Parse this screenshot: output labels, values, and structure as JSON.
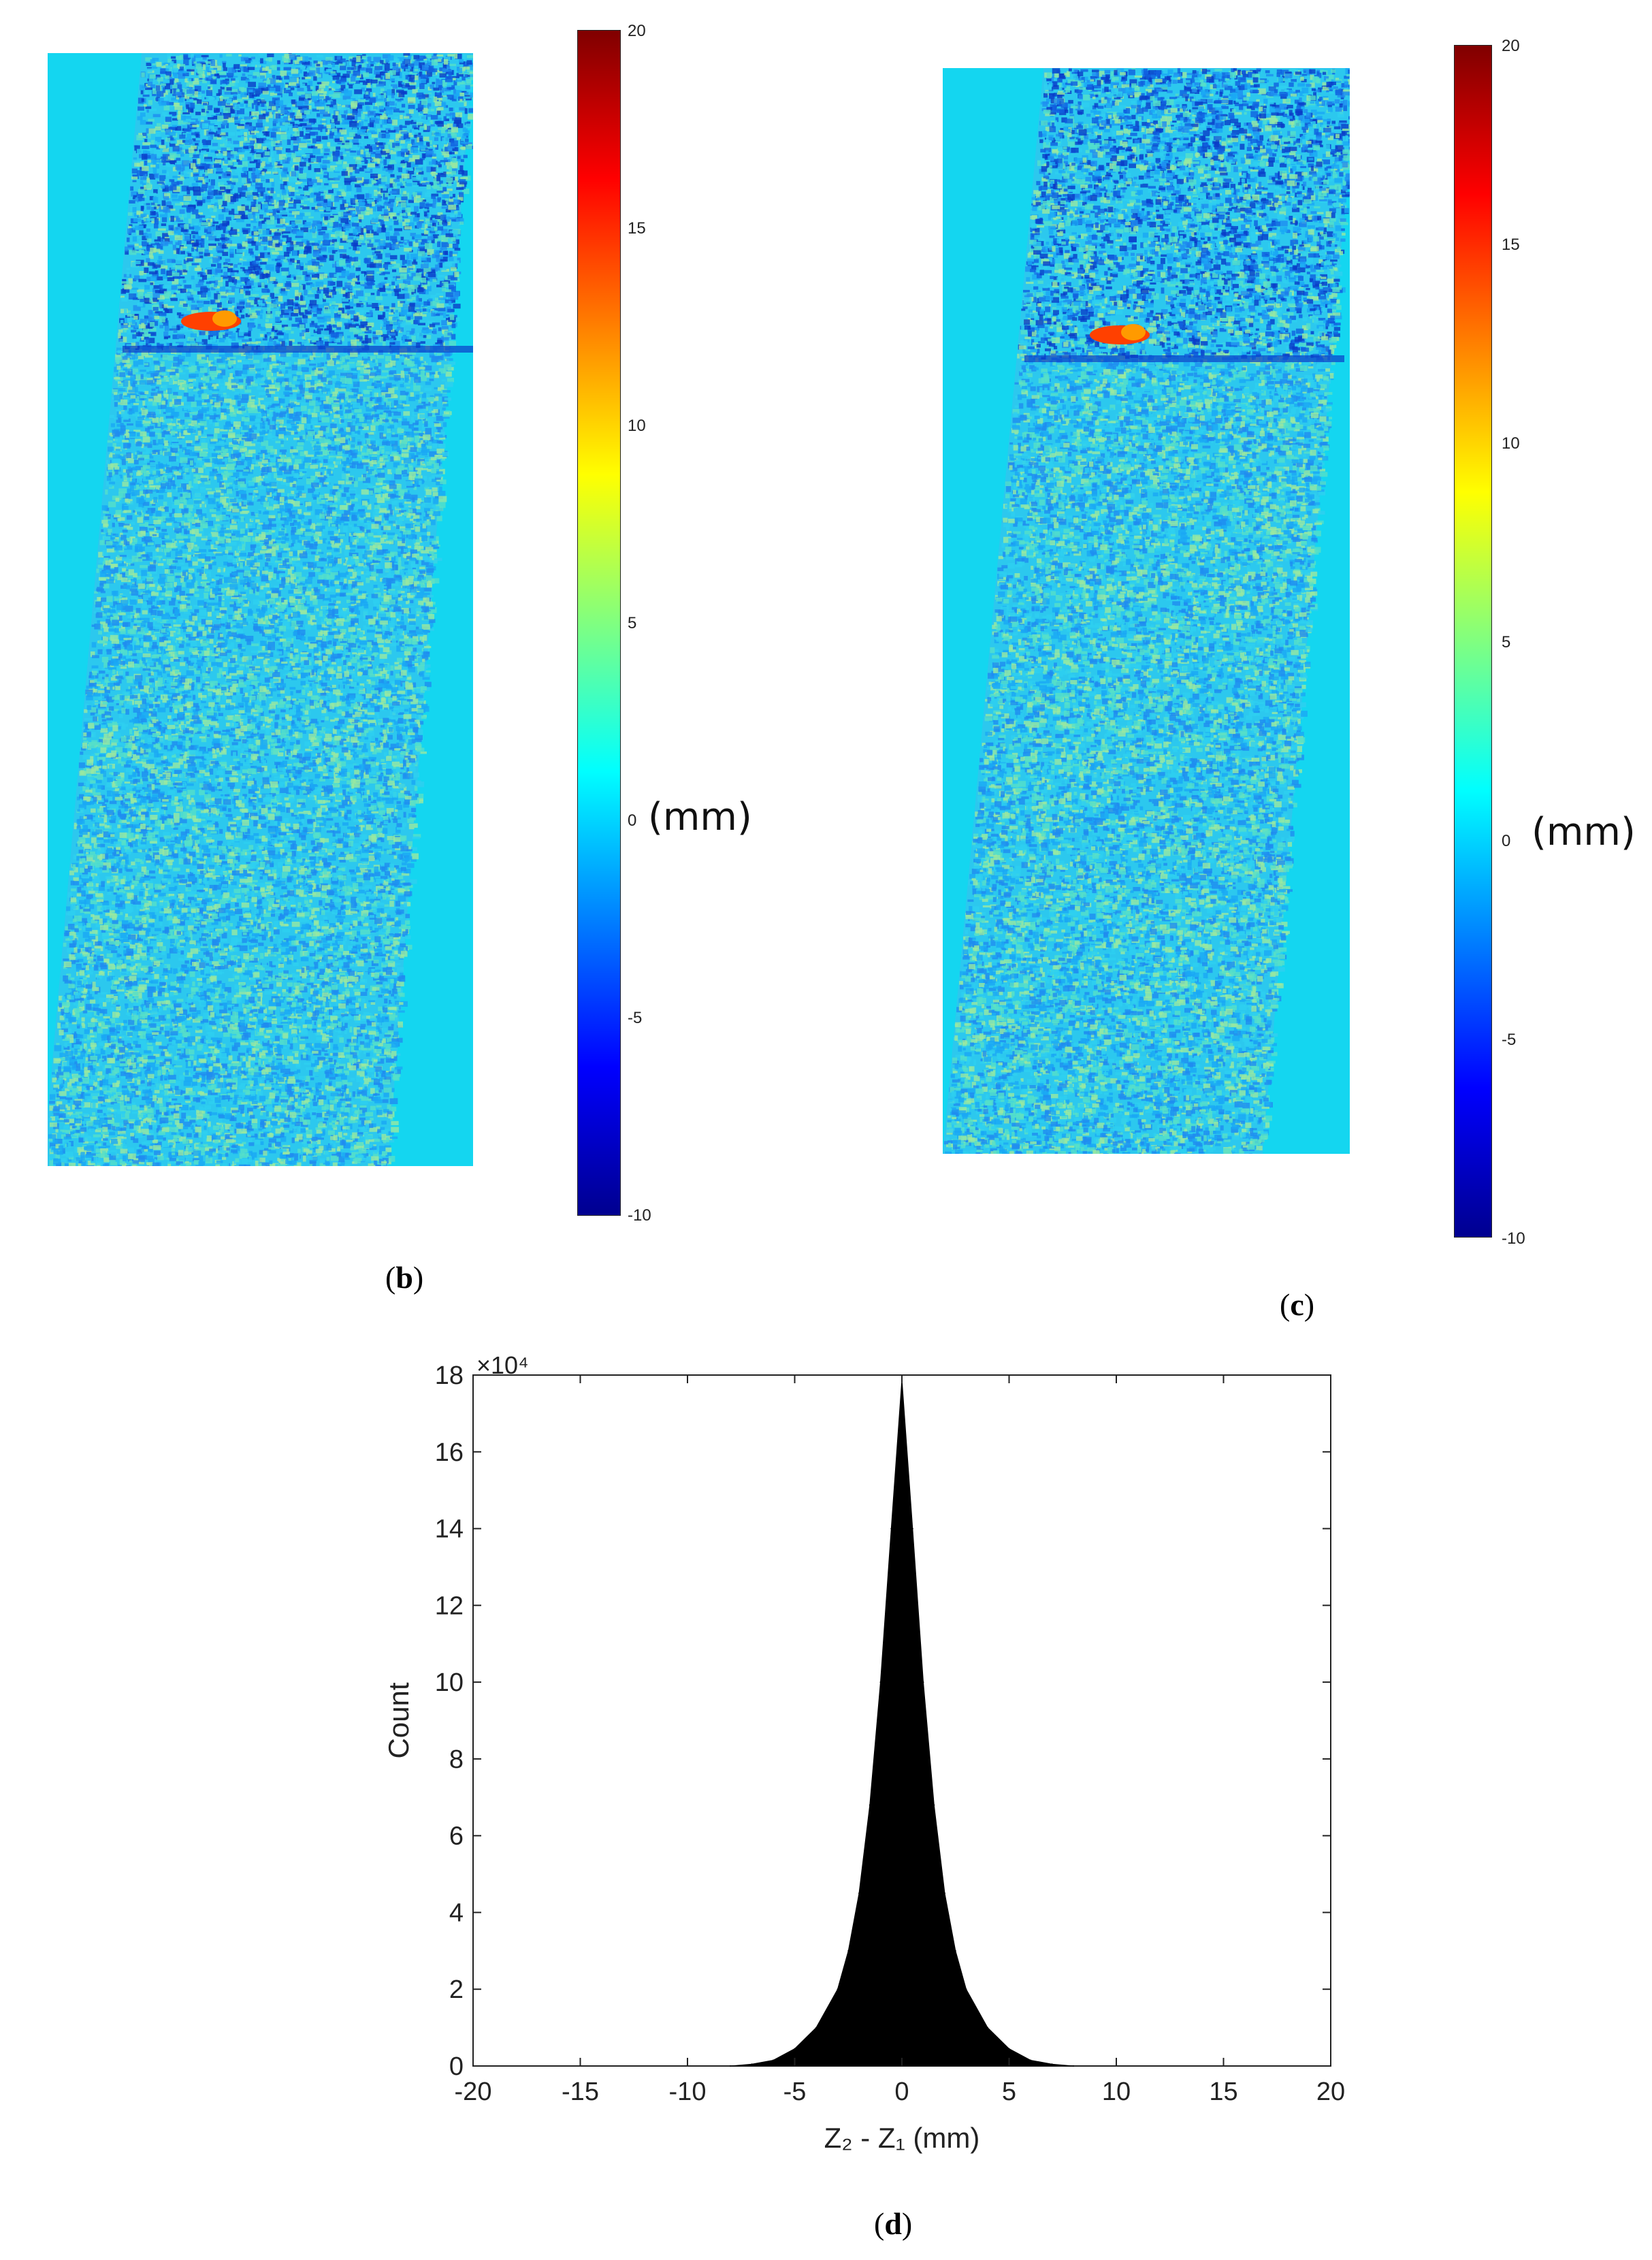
{
  "panels": [
    {
      "id": "b",
      "label": "b",
      "type": "heatmap",
      "colorbar": {
        "min": -10,
        "max": 20,
        "ticks": [
          "20",
          "15",
          "10",
          "5",
          "0",
          "-5",
          "-10"
        ],
        "unit": "(mm)"
      },
      "colormap": [
        "#00008f",
        "#0000ff",
        "#0080ff",
        "#00ffff",
        "#80ff80",
        "#ffff00",
        "#ff8000",
        "#ff0000",
        "#800000"
      ]
    },
    {
      "id": "c",
      "label": "c",
      "type": "heatmap",
      "colorbar": {
        "min": -10,
        "max": 20,
        "ticks": [
          "20",
          "15",
          "10",
          "5",
          "0",
          "-5",
          "-10"
        ],
        "unit": "(mm)"
      },
      "colormap": [
        "#00008f",
        "#0000ff",
        "#0080ff",
        "#00ffff",
        "#80ff80",
        "#ffff00",
        "#ff8000",
        "#ff0000",
        "#800000"
      ]
    }
  ],
  "chart_data": {
    "type": "bar",
    "label": "d",
    "xlabel": "Z₂ - Z₁ (mm)",
    "ylabel": "Count",
    "y_multiplier": "×10⁴",
    "xlim": [
      -20,
      20
    ],
    "ylim": [
      0,
      18
    ],
    "xticks": [
      "-20",
      "-15",
      "-10",
      "-5",
      "0",
      "5",
      "10",
      "15",
      "20"
    ],
    "yticks": [
      "0",
      "2",
      "4",
      "6",
      "8",
      "10",
      "12",
      "14",
      "16",
      "18"
    ],
    "bar_color": "#000000",
    "x": [
      -8,
      -7,
      -6,
      -5,
      -4,
      -3,
      -2.5,
      -2,
      -1.5,
      -1,
      -0.5,
      0,
      0.5,
      1,
      1.5,
      2,
      2.5,
      3,
      4,
      5,
      6,
      7,
      8
    ],
    "values": [
      0,
      0.05,
      0.15,
      0.45,
      1.0,
      2.0,
      3.0,
      4.5,
      6.8,
      10.0,
      14.0,
      17.9,
      14.0,
      10.0,
      6.8,
      4.5,
      3.0,
      2.0,
      1.0,
      0.45,
      0.15,
      0.05,
      0
    ]
  }
}
